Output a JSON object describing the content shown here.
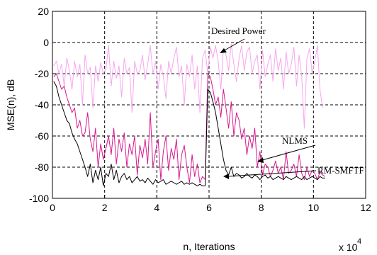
{
  "chart_data": {
    "type": "line",
    "xlabel": "n, Iterations",
    "ylabel": "MSE(n), dB",
    "x_multiplier_label": "x 10",
    "x_multiplier_exponent": "4",
    "xlim": [
      0,
      12
    ],
    "ylim": [
      -100,
      20
    ],
    "xticks": [
      0,
      2,
      4,
      6,
      8,
      10,
      12
    ],
    "yticks": [
      -100,
      -80,
      -60,
      -40,
      -20,
      0,
      20
    ],
    "xtick_labels": [
      "0",
      "2",
      "4",
      "6",
      "8",
      "10",
      "12"
    ],
    "ytick_labels": [
      "-100",
      "-80",
      "-60",
      "-40",
      "-20",
      "0",
      "20"
    ],
    "grid": true,
    "annotations": [
      {
        "text": "Desired Power",
        "target": [
          6.55,
          -3
        ]
      },
      {
        "text": "NLMS",
        "target": [
          7.8,
          -62
        ]
      },
      {
        "text": "RM-SMFTF",
        "target": [
          6.55,
          -85
        ]
      }
    ],
    "series": [
      {
        "color": "#f7a6ee",
        "x": [
          0.05,
          0.15,
          0.25,
          0.35,
          0.45,
          0.55,
          0.65,
          0.75,
          0.85,
          0.95,
          1.05,
          1.15,
          1.25,
          1.35,
          1.45,
          1.55,
          1.65,
          1.75,
          1.85,
          1.95,
          2.05,
          2.15,
          2.25,
          2.35,
          2.45,
          2.55,
          2.65,
          2.75,
          2.85,
          2.95,
          3.05,
          3.15,
          3.25,
          3.35,
          3.45,
          3.55,
          3.65,
          3.75,
          3.85,
          3.95,
          4.05,
          4.15,
          4.25,
          4.35,
          4.45,
          4.55,
          4.65,
          4.75,
          4.85,
          4.95,
          5.05,
          5.15,
          5.25,
          5.35,
          5.45,
          5.55,
          5.65,
          5.75,
          5.85,
          5.95,
          6.05,
          6.15,
          6.25,
          6.35,
          6.45,
          6.55,
          6.65,
          6.75,
          6.85,
          6.95,
          7.05,
          7.15,
          7.25,
          7.35,
          7.45,
          7.55,
          7.65,
          7.75,
          7.85,
          7.95,
          8.05,
          8.15,
          8.25,
          8.35,
          8.45,
          8.55,
          8.65,
          8.75,
          8.85,
          8.95,
          9.05,
          9.15,
          9.25,
          9.35,
          9.45,
          9.55,
          9.65,
          9.75,
          9.85,
          9.95,
          10.05,
          10.15,
          10.25,
          10.35
        ],
        "y": [
          -15,
          -12,
          -20,
          -14,
          -28,
          -10,
          -18,
          -30,
          -12,
          -22,
          -14,
          -40,
          -8,
          -20,
          -16,
          -42,
          -15,
          -25,
          -13,
          -20,
          -17,
          -2,
          -28,
          -12,
          -23,
          -15,
          -35,
          -10,
          -20,
          -16,
          -45,
          -12,
          -20,
          -18,
          -8,
          -24,
          -14,
          -2,
          -20,
          -12,
          -30,
          -14,
          -22,
          -36,
          -12,
          -20,
          -10,
          -3,
          -22,
          -15,
          -40,
          -14,
          -22,
          -8,
          -30,
          -15,
          -45,
          -10,
          -5,
          -20,
          -3,
          -10,
          -2,
          -12,
          -30,
          -4,
          -8,
          -18,
          -1,
          -14,
          -25,
          -10,
          -2,
          -18,
          -6,
          -3,
          -20,
          -12,
          -8,
          -30,
          -5,
          -22,
          -14,
          -8,
          -25,
          -4,
          -18,
          -10,
          -30,
          -6,
          -20,
          -14,
          -3,
          -28,
          -8,
          -22,
          -55,
          -10,
          -4,
          -20,
          -12,
          -2,
          -30,
          -42
        ]
      },
      {
        "color": "#d8188e",
        "x": [
          0.05,
          0.15,
          0.25,
          0.35,
          0.45,
          0.55,
          0.65,
          0.75,
          0.85,
          0.95,
          1.05,
          1.15,
          1.25,
          1.35,
          1.45,
          1.55,
          1.65,
          1.75,
          1.85,
          1.95,
          2.05,
          2.15,
          2.25,
          2.35,
          2.45,
          2.55,
          2.65,
          2.75,
          2.85,
          2.95,
          3.05,
          3.15,
          3.25,
          3.35,
          3.45,
          3.55,
          3.65,
          3.75,
          3.85,
          3.95,
          4.05,
          4.15,
          4.25,
          4.35,
          4.45,
          4.55,
          4.65,
          4.75,
          4.85,
          4.95,
          5.05,
          5.15,
          5.25,
          5.35,
          5.45,
          5.55,
          5.65,
          5.75,
          5.85,
          5.95,
          6.05,
          6.15,
          6.25,
          6.35,
          6.45,
          6.55,
          6.65,
          6.75,
          6.85,
          6.95,
          7.05,
          7.15,
          7.25,
          7.35,
          7.45,
          7.55,
          7.65,
          7.75,
          7.85,
          7.95,
          8.05,
          8.15,
          8.25,
          8.35,
          8.45,
          8.55,
          8.65,
          8.75,
          8.85,
          8.95,
          9.05,
          9.15,
          9.25,
          9.35,
          9.45,
          9.55,
          9.65,
          9.75,
          9.85,
          9.95,
          10.05,
          10.15,
          10.25,
          10.35,
          10.45
        ],
        "y": [
          -22,
          -20,
          -25,
          -30,
          -28,
          -35,
          -40,
          -45,
          -42,
          -55,
          -50,
          -60,
          -58,
          -45,
          -62,
          -70,
          -55,
          -80,
          -65,
          -75,
          -68,
          -60,
          -72,
          -55,
          -78,
          -62,
          -70,
          -58,
          -80,
          -65,
          -72,
          -60,
          -85,
          -66,
          -74,
          -62,
          -78,
          -45,
          -80,
          -70,
          -62,
          -88,
          -70,
          -60,
          -82,
          -68,
          -75,
          -62,
          -88,
          -72,
          -66,
          -80,
          -90,
          -72,
          -86,
          -78,
          -90,
          -86,
          -88,
          -20,
          -22,
          -30,
          -40,
          -35,
          -48,
          -30,
          -42,
          -55,
          -38,
          -60,
          -45,
          -50,
          -62,
          -55,
          -72,
          -60,
          -68,
          -55,
          -80,
          -70,
          -85,
          -78,
          -80,
          -86,
          -82,
          -76,
          -84,
          -80,
          -88,
          -70,
          -84,
          -82,
          -78,
          -86,
          -72,
          -84,
          -88,
          -80,
          -86,
          -82,
          -84,
          -88,
          -83,
          -85,
          -86
        ]
      },
      {
        "color": "#000000",
        "x": [
          0.05,
          0.15,
          0.25,
          0.35,
          0.45,
          0.55,
          0.65,
          0.75,
          0.85,
          0.95,
          1.05,
          1.15,
          1.25,
          1.35,
          1.45,
          1.55,
          1.65,
          1.75,
          1.85,
          1.95,
          2.05,
          2.15,
          2.25,
          2.35,
          2.45,
          2.55,
          2.65,
          2.75,
          2.85,
          2.95,
          3.05,
          3.15,
          3.25,
          3.35,
          3.45,
          3.55,
          3.65,
          3.75,
          3.85,
          3.95,
          4.05,
          4.15,
          4.25,
          4.35,
          4.45,
          4.55,
          4.65,
          4.75,
          4.85,
          4.95,
          5.05,
          5.15,
          5.25,
          5.35,
          5.45,
          5.55,
          5.65,
          5.75,
          5.85,
          5.95,
          6.05,
          6.15,
          6.25,
          6.35,
          6.45,
          6.55,
          6.65,
          6.75,
          6.85,
          6.95,
          7.05,
          7.15,
          7.25,
          7.35,
          7.45,
          7.55,
          7.65,
          7.75,
          7.85,
          7.95,
          8.05,
          8.15,
          8.25,
          8.35,
          8.45,
          8.55,
          8.65,
          8.75,
          8.85,
          8.95,
          9.05,
          9.15,
          9.25,
          9.35,
          9.45,
          9.55,
          9.65,
          9.75,
          9.85,
          9.95,
          10.05,
          10.15,
          10.25,
          10.35,
          10.45
        ],
        "y": [
          -25,
          -28,
          -35,
          -40,
          -45,
          -50,
          -52,
          -58,
          -62,
          -65,
          -70,
          -75,
          -80,
          -86,
          -78,
          -90,
          -82,
          -88,
          -80,
          -92,
          -84,
          -86,
          -78,
          -88,
          -82,
          -90,
          -86,
          -84,
          -88,
          -86,
          -90,
          -88,
          -86,
          -89,
          -88,
          -90,
          -87,
          -89,
          -91,
          -88,
          -90,
          -89,
          -88,
          -91,
          -90,
          -89,
          -90,
          -91,
          -90,
          -89,
          -91,
          -90,
          -91,
          -90,
          -91,
          -92,
          -91,
          -92,
          -92,
          -30,
          -32,
          -38,
          -45,
          -55,
          -65,
          -75,
          -82,
          -85,
          -80,
          -86,
          -84,
          -85,
          -87,
          -86,
          -84,
          -86,
          -87,
          -85,
          -86,
          -88,
          -86,
          -85,
          -87,
          -86,
          -88,
          -87,
          -86,
          -87,
          -88,
          -86,
          -87,
          -88,
          -87,
          -86,
          -87,
          -88,
          -86,
          -88,
          -87,
          -86,
          -87,
          -88,
          -86,
          -87,
          -87
        ]
      }
    ]
  }
}
